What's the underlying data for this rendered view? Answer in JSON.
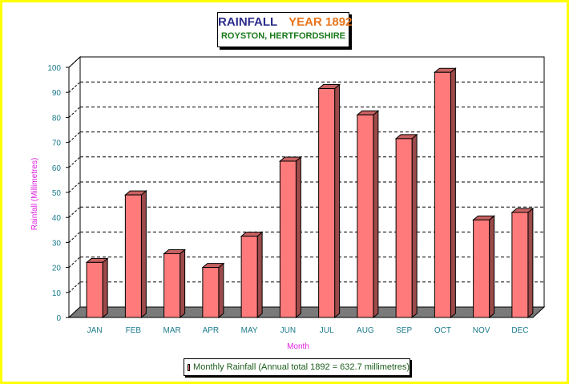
{
  "colors": {
    "frame": "#ffff00",
    "bar_front": "#ff7b7b",
    "bar_side": "#9c4a4a",
    "bar_top": "#c96262",
    "floor": "#7a7a7a",
    "tick_label": "#1a7a8c",
    "axis_title": "#e020e0",
    "title_main": "#2b2b8c",
    "title_year": "#e8741a",
    "subtitle": "#1a7a1a"
  },
  "chart_data": {
    "type": "bar",
    "title": "RAINFALL",
    "title_year": "YEAR 1892",
    "subtitle": "ROYSTON, HERTFORDSHIRE",
    "xlabel": "Month",
    "ylabel": "Rainfall (Millimetres)",
    "ylim": [
      0,
      100
    ],
    "yticks": [
      0,
      10,
      20,
      30,
      40,
      50,
      60,
      70,
      80,
      90,
      100
    ],
    "grid": true,
    "legend_position": "bottom",
    "categories": [
      "JAN",
      "FEB",
      "MAR",
      "APR",
      "MAY",
      "JUN",
      "JUL",
      "AUG",
      "SEP",
      "OCT",
      "NOV",
      "DEC"
    ],
    "series": [
      {
        "name": "Monthly Rainfall (Annual total 1892 = 632.7 millimetres)",
        "values": [
          22,
          49,
          25.5,
          20,
          32.5,
          62.5,
          91.5,
          81,
          71.5,
          98,
          39,
          42
        ]
      }
    ]
  }
}
